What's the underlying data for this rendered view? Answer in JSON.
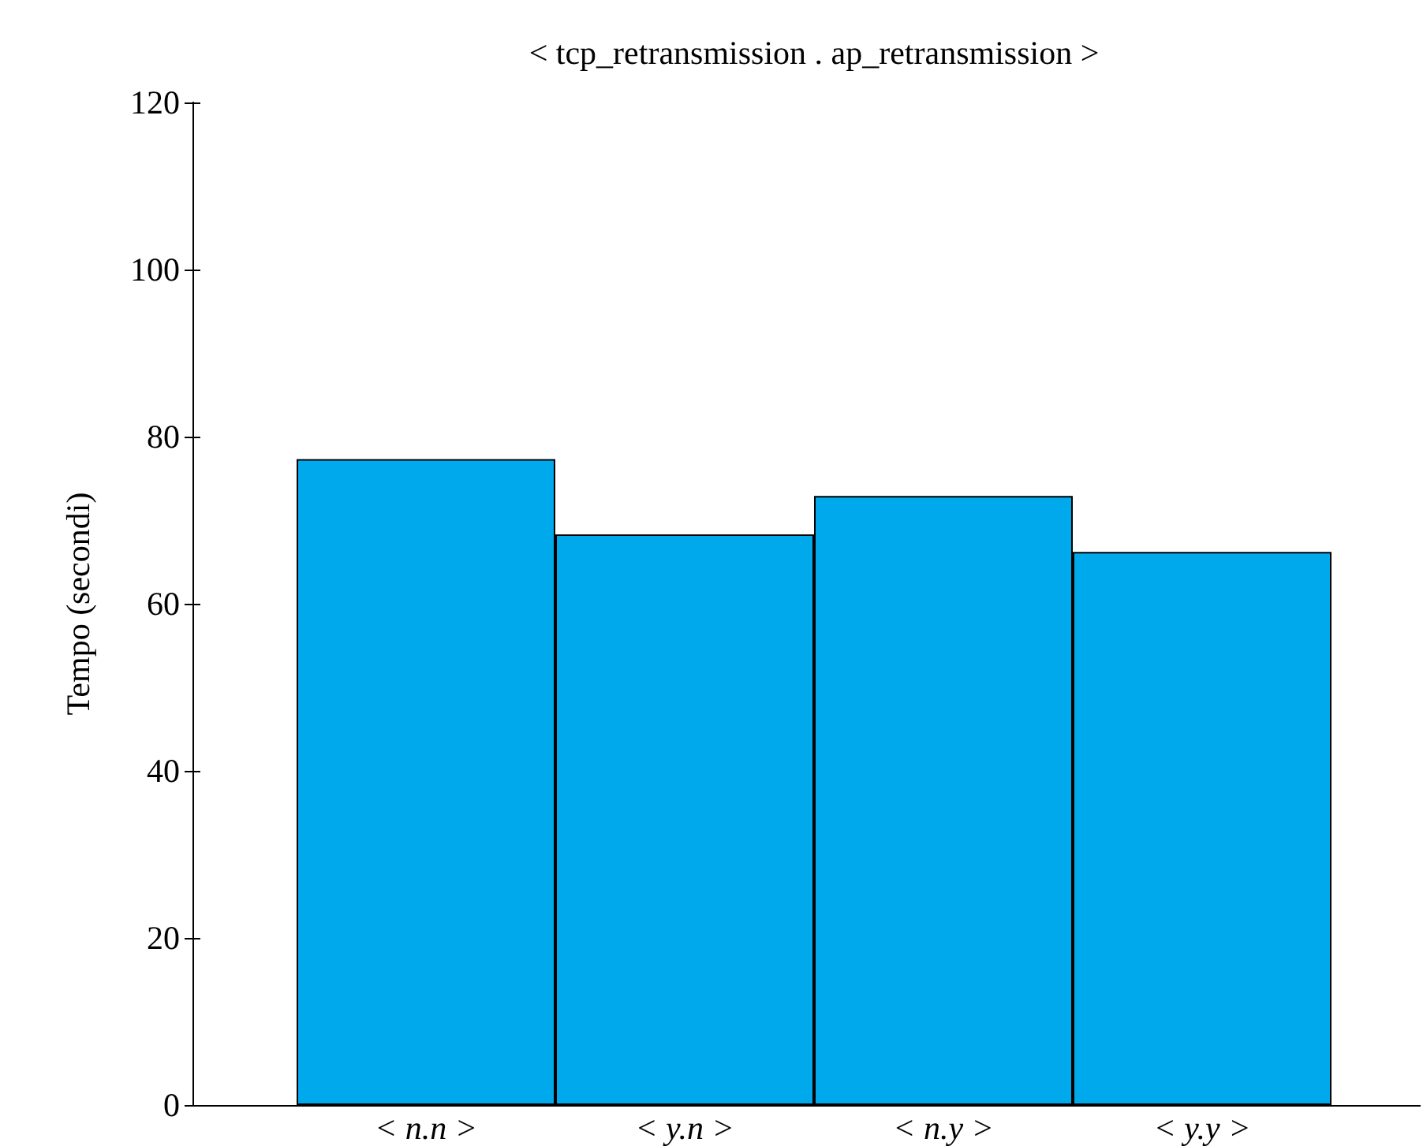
{
  "chart_data": {
    "type": "bar",
    "title": "< tcp_retransmission . ap_retransmission >",
    "ylabel": "Tempo (secondi)",
    "categories": [
      "< n.n >",
      "< y.n >",
      "< n.y >",
      "< y.y >"
    ],
    "values": [
      77.3,
      68.3,
      72.9,
      66.2
    ],
    "color": "#00a8ec",
    "ylim": [
      0,
      120
    ],
    "yticks": [
      0,
      20,
      40,
      60,
      80,
      100,
      120
    ],
    "grid": false
  }
}
